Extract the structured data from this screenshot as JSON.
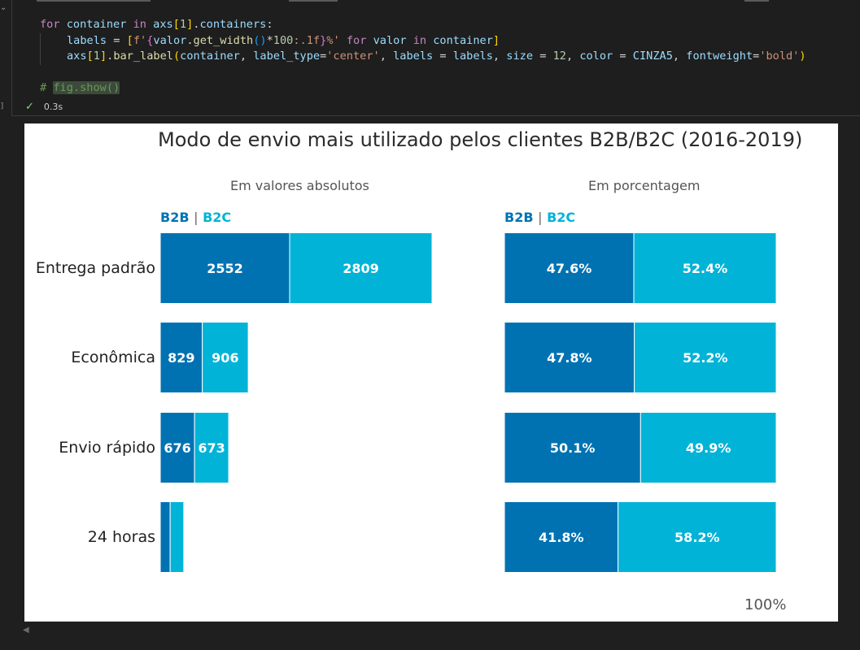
{
  "code": {
    "lines": [
      [
        {
          "t": "for ",
          "c": "kw"
        },
        {
          "t": "container ",
          "c": "var"
        },
        {
          "t": "in ",
          "c": "kw"
        },
        {
          "t": "axs",
          "c": "var"
        },
        {
          "t": "[",
          "c": "br1"
        },
        {
          "t": "1",
          "c": "num"
        },
        {
          "t": "]",
          "c": "br1"
        },
        {
          "t": ".",
          "c": ""
        },
        {
          "t": "containers",
          "c": "var"
        },
        {
          "t": ":",
          "c": ""
        }
      ],
      [
        {
          "t": "    ",
          "c": "ind"
        },
        {
          "t": "labels ",
          "c": "var"
        },
        {
          "t": "= ",
          "c": ""
        },
        {
          "t": "[",
          "c": "br1"
        },
        {
          "t": "f'",
          "c": "str"
        },
        {
          "t": "{",
          "c": "br2"
        },
        {
          "t": "valor",
          "c": "var"
        },
        {
          "t": ".",
          "c": ""
        },
        {
          "t": "get_width",
          "c": "fn"
        },
        {
          "t": "()",
          "c": "br3"
        },
        {
          "t": "*",
          "c": ""
        },
        {
          "t": "100",
          "c": "num"
        },
        {
          "t": ":.1f",
          "c": "str"
        },
        {
          "t": "}",
          "c": "br2"
        },
        {
          "t": "%' ",
          "c": "str"
        },
        {
          "t": "for ",
          "c": "kw"
        },
        {
          "t": "valor ",
          "c": "var"
        },
        {
          "t": "in ",
          "c": "kw"
        },
        {
          "t": "container",
          "c": "var"
        },
        {
          "t": "]",
          "c": "br1"
        }
      ],
      [
        {
          "t": "    ",
          "c": "ind"
        },
        {
          "t": "axs",
          "c": "var"
        },
        {
          "t": "[",
          "c": "br1"
        },
        {
          "t": "1",
          "c": "num"
        },
        {
          "t": "]",
          "c": "br1"
        },
        {
          "t": ".",
          "c": ""
        },
        {
          "t": "bar_label",
          "c": "fn"
        },
        {
          "t": "(",
          "c": "br1"
        },
        {
          "t": "container",
          "c": "var"
        },
        {
          "t": ", ",
          "c": ""
        },
        {
          "t": "label_type",
          "c": "var"
        },
        {
          "t": "=",
          "c": ""
        },
        {
          "t": "'center'",
          "c": "str"
        },
        {
          "t": ", ",
          "c": ""
        },
        {
          "t": "labels ",
          "c": "var"
        },
        {
          "t": "= ",
          "c": ""
        },
        {
          "t": "labels",
          "c": "var"
        },
        {
          "t": ", ",
          "c": ""
        },
        {
          "t": "size ",
          "c": "var"
        },
        {
          "t": "= ",
          "c": ""
        },
        {
          "t": "12",
          "c": "num"
        },
        {
          "t": ", ",
          "c": ""
        },
        {
          "t": "color ",
          "c": "var"
        },
        {
          "t": "= ",
          "c": ""
        },
        {
          "t": "CINZA5",
          "c": "var"
        },
        {
          "t": ", ",
          "c": ""
        },
        {
          "t": "fontweight",
          "c": "var"
        },
        {
          "t": "=",
          "c": ""
        },
        {
          "t": "'bold'",
          "c": "str"
        },
        {
          "t": ")",
          "c": "br1"
        }
      ],
      [],
      [
        {
          "t": "# ",
          "c": "cm"
        },
        {
          "t": "fig.show()",
          "c": "cm-hl"
        }
      ]
    ],
    "exec_time": "0.3s",
    "gutter_bracket": "]"
  },
  "chart_data": [
    {
      "type": "bar",
      "orientation": "horizontal",
      "stacked": true,
      "suptitle": "Modo de envio mais utilizado pelos clientes B2B/B2C (2016-2019)",
      "title": "Em valores absolutos",
      "categories": [
        "Entrega padrão",
        "Econômica",
        "Envio rápido",
        "24 horas"
      ],
      "series": [
        {
          "name": "B2B",
          "values": [
            2552,
            829,
            676,
            195
          ],
          "labels": [
            "2552",
            "829",
            "676",
            ""
          ]
        },
        {
          "name": "B2C",
          "values": [
            2809,
            906,
            673,
            268
          ],
          "labels": [
            "2809",
            "906",
            "673",
            ""
          ]
        }
      ],
      "xlim": [
        0,
        5400
      ]
    },
    {
      "type": "bar",
      "orientation": "horizontal",
      "stacked": true,
      "title": "Em porcentagem",
      "categories": [
        "Entrega padrão",
        "Econômica",
        "Envio rápido",
        "24 horas"
      ],
      "series": [
        {
          "name": "B2B",
          "values": [
            47.6,
            47.8,
            50.1,
            41.8
          ],
          "labels": [
            "47.6%",
            "47.8%",
            "50.1%",
            "41.8%"
          ]
        },
        {
          "name": "B2C",
          "values": [
            52.4,
            52.2,
            49.9,
            58.2
          ],
          "labels": [
            "52.4%",
            "52.2%",
            "49.9%",
            "58.2%"
          ]
        }
      ],
      "xlim": [
        0,
        100
      ],
      "xtick_label": "100%"
    }
  ],
  "legend": {
    "b2b": "B2B",
    "sep": "|",
    "b2c": "B2C"
  },
  "colors": {
    "b2b": "#0072b2",
    "b2c": "#00b3d7",
    "label": "#ffffff",
    "separator": "#ffffff"
  }
}
